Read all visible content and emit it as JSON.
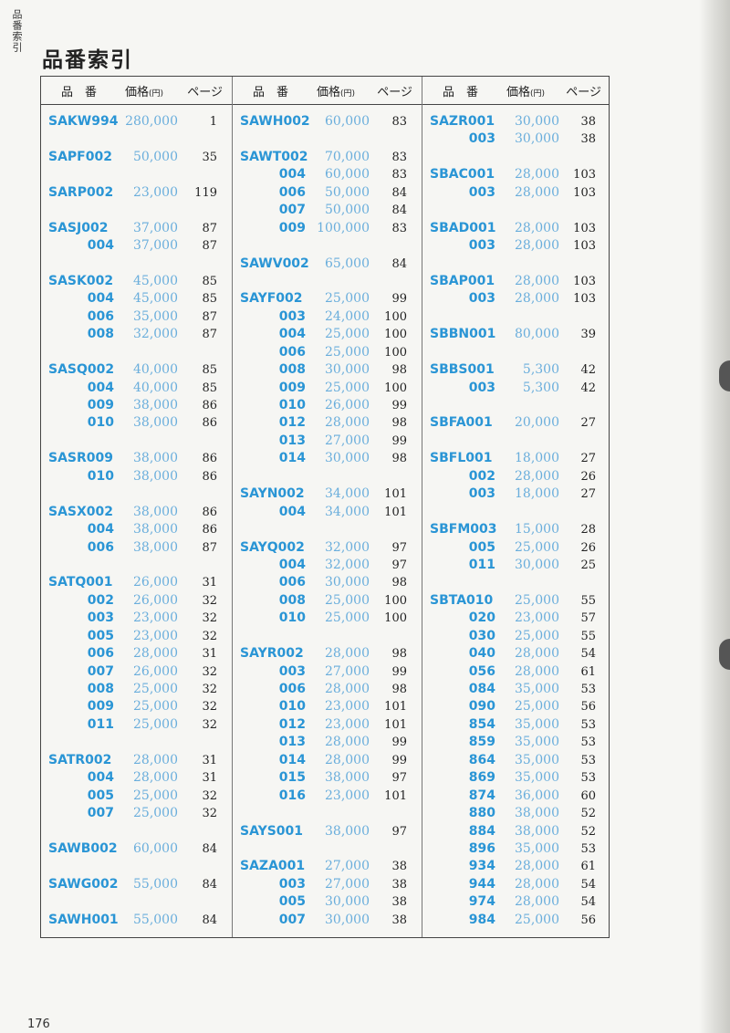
{
  "side_label": "品番索引",
  "title": "品番索引",
  "page_number": "176",
  "header": {
    "code": "品　番",
    "price": "価格",
    "price_unit": "(円)",
    "page": "ページ"
  },
  "columns": [
    [
      [
        [
          "SAKW994",
          "280,000",
          "1"
        ]
      ],
      [
        [
          "SAPF002",
          "50,000",
          "35"
        ]
      ],
      [
        [
          "SARP002",
          "23,000",
          "119"
        ]
      ],
      [
        [
          "SASJ002",
          "37,000",
          "87"
        ],
        [
          "004",
          "37,000",
          "87"
        ]
      ],
      [
        [
          "SASK002",
          "45,000",
          "85"
        ],
        [
          "004",
          "45,000",
          "85"
        ],
        [
          "006",
          "35,000",
          "87"
        ],
        [
          "008",
          "32,000",
          "87"
        ]
      ],
      [
        [
          "SASQ002",
          "40,000",
          "85"
        ],
        [
          "004",
          "40,000",
          "85"
        ],
        [
          "009",
          "38,000",
          "86"
        ],
        [
          "010",
          "38,000",
          "86"
        ]
      ],
      [
        [
          "SASR009",
          "38,000",
          "86"
        ],
        [
          "010",
          "38,000",
          "86"
        ]
      ],
      [
        [
          "SASX002",
          "38,000",
          "86"
        ],
        [
          "004",
          "38,000",
          "86"
        ],
        [
          "006",
          "38,000",
          "87"
        ]
      ],
      [
        [
          "SATQ001",
          "26,000",
          "31"
        ],
        [
          "002",
          "26,000",
          "32"
        ],
        [
          "003",
          "23,000",
          "32"
        ],
        [
          "005",
          "23,000",
          "32"
        ],
        [
          "006",
          "28,000",
          "31"
        ],
        [
          "007",
          "26,000",
          "32"
        ],
        [
          "008",
          "25,000",
          "32"
        ],
        [
          "009",
          "25,000",
          "32"
        ],
        [
          "011",
          "25,000",
          "32"
        ]
      ],
      [
        [
          "SATR002",
          "28,000",
          "31"
        ],
        [
          "004",
          "28,000",
          "31"
        ],
        [
          "005",
          "25,000",
          "32"
        ],
        [
          "007",
          "25,000",
          "32"
        ]
      ],
      [
        [
          "SAWB002",
          "60,000",
          "84"
        ]
      ],
      [
        [
          "SAWG002",
          "55,000",
          "84"
        ]
      ],
      [
        [
          "SAWH001",
          "55,000",
          "84"
        ]
      ]
    ],
    [
      [
        [
          "SAWH002",
          "60,000",
          "83"
        ]
      ],
      [
        [
          "SAWT002",
          "70,000",
          "83"
        ],
        [
          "004",
          "60,000",
          "83"
        ],
        [
          "006",
          "50,000",
          "84"
        ],
        [
          "007",
          "50,000",
          "84"
        ],
        [
          "009",
          "100,000",
          "83"
        ]
      ],
      [
        [
          "SAWV002",
          "65,000",
          "84"
        ]
      ],
      [
        [
          "SAYF002",
          "25,000",
          "99"
        ],
        [
          "003",
          "24,000",
          "100"
        ],
        [
          "004",
          "25,000",
          "100"
        ],
        [
          "006",
          "25,000",
          "100"
        ],
        [
          "008",
          "30,000",
          "98"
        ],
        [
          "009",
          "25,000",
          "100"
        ],
        [
          "010",
          "26,000",
          "99"
        ],
        [
          "012",
          "28,000",
          "98"
        ],
        [
          "013",
          "27,000",
          "99"
        ],
        [
          "014",
          "30,000",
          "98"
        ]
      ],
      [
        [
          "SAYN002",
          "34,000",
          "101"
        ],
        [
          "004",
          "34,000",
          "101"
        ]
      ],
      [
        [
          "SAYQ002",
          "32,000",
          "97"
        ],
        [
          "004",
          "32,000",
          "97"
        ],
        [
          "006",
          "30,000",
          "98"
        ],
        [
          "008",
          "25,000",
          "100"
        ],
        [
          "010",
          "25,000",
          "100"
        ]
      ],
      [
        [
          "SAYR002",
          "28,000",
          "98"
        ],
        [
          "003",
          "27,000",
          "99"
        ],
        [
          "006",
          "28,000",
          "98"
        ],
        [
          "010",
          "23,000",
          "101"
        ],
        [
          "012",
          "23,000",
          "101"
        ],
        [
          "013",
          "28,000",
          "99"
        ],
        [
          "014",
          "28,000",
          "99"
        ],
        [
          "015",
          "38,000",
          "97"
        ],
        [
          "016",
          "23,000",
          "101"
        ]
      ],
      [
        [
          "SAYS001",
          "38,000",
          "97"
        ]
      ],
      [
        [
          "SAZA001",
          "27,000",
          "38"
        ],
        [
          "003",
          "27,000",
          "38"
        ],
        [
          "005",
          "30,000",
          "38"
        ],
        [
          "007",
          "30,000",
          "38"
        ]
      ]
    ],
    [
      [
        [
          "SAZR001",
          "30,000",
          "38"
        ],
        [
          "003",
          "30,000",
          "38"
        ]
      ],
      [
        [
          "SBAC001",
          "28,000",
          "103"
        ],
        [
          "003",
          "28,000",
          "103"
        ]
      ],
      [
        [
          "SBAD001",
          "28,000",
          "103"
        ],
        [
          "003",
          "28,000",
          "103"
        ]
      ],
      [
        [
          "SBAP001",
          "28,000",
          "103"
        ],
        [
          "003",
          "28,000",
          "103"
        ]
      ],
      [
        [
          "SBBN001",
          "80,000",
          "39"
        ]
      ],
      [
        [
          "SBBS001",
          "5,300",
          "42"
        ],
        [
          "003",
          "5,300",
          "42"
        ]
      ],
      [
        [
          "SBFA001",
          "20,000",
          "27"
        ]
      ],
      [
        [
          "SBFL001",
          "18,000",
          "27"
        ],
        [
          "002",
          "28,000",
          "26"
        ],
        [
          "003",
          "18,000",
          "27"
        ]
      ],
      [
        [
          "SBFM003",
          "15,000",
          "28"
        ],
        [
          "005",
          "25,000",
          "26"
        ],
        [
          "011",
          "30,000",
          "25"
        ]
      ],
      [
        [
          "SBTA010",
          "25,000",
          "55"
        ],
        [
          "020",
          "23,000",
          "57"
        ],
        [
          "030",
          "25,000",
          "55"
        ],
        [
          "040",
          "28,000",
          "54"
        ],
        [
          "056",
          "28,000",
          "61"
        ],
        [
          "084",
          "35,000",
          "53"
        ],
        [
          "090",
          "25,000",
          "56"
        ],
        [
          "854",
          "35,000",
          "53"
        ],
        [
          "859",
          "35,000",
          "53"
        ],
        [
          "864",
          "35,000",
          "53"
        ],
        [
          "869",
          "35,000",
          "53"
        ],
        [
          "874",
          "36,000",
          "60"
        ],
        [
          "880",
          "38,000",
          "52"
        ],
        [
          "884",
          "38,000",
          "52"
        ],
        [
          "896",
          "35,000",
          "53"
        ],
        [
          "934",
          "28,000",
          "61"
        ],
        [
          "944",
          "28,000",
          "54"
        ],
        [
          "974",
          "28,000",
          "54"
        ],
        [
          "984",
          "25,000",
          "56"
        ]
      ]
    ]
  ]
}
